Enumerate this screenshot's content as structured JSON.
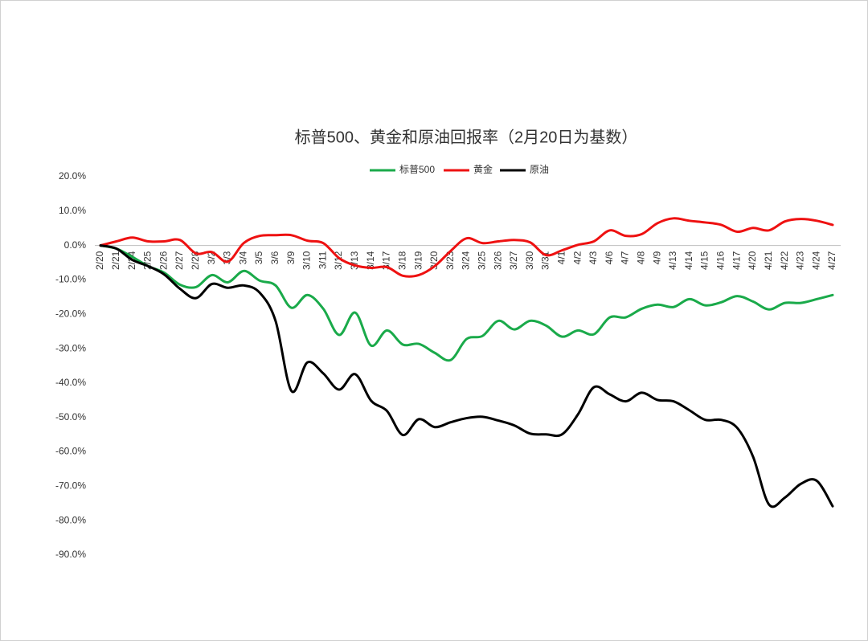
{
  "chart_data": {
    "type": "line",
    "title": "标普500、黄金和原油回报率（2月20日为基数）",
    "categories": [
      "2/20",
      "2/21",
      "2/24",
      "2/25",
      "2/26",
      "2/27",
      "2/28",
      "3/2",
      "3/3",
      "3/4",
      "3/5",
      "3/6",
      "3/9",
      "3/10",
      "3/11",
      "3/12",
      "3/13",
      "3/14",
      "3/17",
      "3/18",
      "3/19",
      "3/20",
      "3/23",
      "3/24",
      "3/25",
      "3/26",
      "3/27",
      "3/30",
      "3/31",
      "4/1",
      "4/2",
      "4/3",
      "4/6",
      "4/7",
      "4/8",
      "4/9",
      "4/13",
      "4/14",
      "4/15",
      "4/16",
      "4/17",
      "4/20",
      "4/21",
      "4/22",
      "4/23",
      "4/24",
      "4/27"
    ],
    "series": [
      {
        "name": "标普500",
        "color": "#1aaa4a",
        "values": [
          0,
          -0.9,
          -3.3,
          -6.0,
          -7.9,
          -11.4,
          -12.1,
          -8.6,
          -10.7,
          -7.4,
          -10.2,
          -11.6,
          -18.1,
          -14.4,
          -18.4,
          -26.0,
          -19.5,
          -29.1,
          -24.7,
          -28.8,
          -28.6,
          -31.2,
          -33.3,
          -27.2,
          -26.3,
          -21.9,
          -24.4,
          -21.9,
          -23.3,
          -26.5,
          -24.7,
          -25.8,
          -20.9,
          -20.9,
          -18.4,
          -17.2,
          -17.9,
          -15.6,
          -17.4,
          -16.5,
          -14.7,
          -16.3,
          -18.6,
          -16.7,
          -16.7,
          -15.6,
          -14.4
        ]
      },
      {
        "name": "黄金",
        "color": "#ee1111",
        "values": [
          0,
          1.2,
          2.3,
          1.2,
          1.2,
          1.6,
          -2.3,
          -1.9,
          -4.7,
          0.7,
          2.8,
          3.0,
          3.0,
          1.4,
          0.7,
          -3.7,
          -5.8,
          -6.5,
          -6.3,
          -8.8,
          -8.6,
          -6.0,
          -1.6,
          2.1,
          0.7,
          1.2,
          1.6,
          0.9,
          -2.8,
          -1.4,
          0.2,
          1.2,
          4.4,
          2.8,
          3.3,
          6.5,
          7.9,
          7.2,
          6.7,
          6.0,
          4.0,
          5.1,
          4.4,
          7.0,
          7.7,
          7.2,
          6.0
        ]
      },
      {
        "name": "原油",
        "color": "#000000",
        "values": [
          0,
          -0.9,
          -4.2,
          -6.0,
          -8.4,
          -12.6,
          -15.3,
          -11.2,
          -12.3,
          -11.6,
          -13.7,
          -21.9,
          -42.3,
          -34.0,
          -37.2,
          -41.9,
          -37.4,
          -45.1,
          -48.1,
          -55.1,
          -50.5,
          -52.8,
          -51.4,
          -50.2,
          -49.8,
          -50.9,
          -52.3,
          -54.7,
          -54.9,
          -54.9,
          -49.1,
          -41.2,
          -43.3,
          -45.3,
          -42.8,
          -44.9,
          -45.3,
          -47.9,
          -50.7,
          -50.7,
          -53.0,
          -61.4,
          -75.3,
          -73.3,
          -69.3,
          -68.4,
          -75.8
        ]
      }
    ],
    "ylim": [
      -90,
      20
    ],
    "yticks": [
      {
        "value": -90,
        "label": "-90.0%"
      },
      {
        "value": -80,
        "label": "-80.0%"
      },
      {
        "value": -70,
        "label": "-70.0%"
      },
      {
        "value": -60,
        "label": "-60.0%"
      },
      {
        "value": -50,
        "label": "-50.0%"
      },
      {
        "value": -40,
        "label": "-40.0%"
      },
      {
        "value": -30,
        "label": "-30.0%"
      },
      {
        "value": -20,
        "label": "-20.0%"
      },
      {
        "value": -10,
        "label": "-10.0%"
      },
      {
        "value": 0,
        "label": "0.0%"
      },
      {
        "value": 10,
        "label": "10.0%"
      },
      {
        "value": 20,
        "label": "20.0%"
      }
    ],
    "legend": "top",
    "smooth": true
  }
}
